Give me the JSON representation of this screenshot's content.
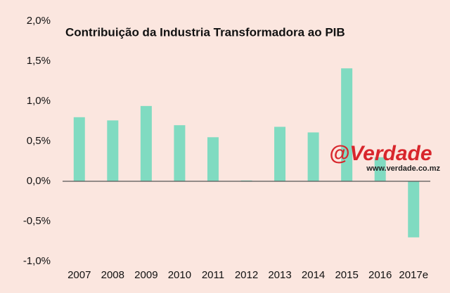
{
  "chart_data": {
    "type": "bar",
    "title": "Contribuição da Industria Transformadora ao PIB",
    "categories": [
      "2007",
      "2008",
      "2009",
      "2010",
      "2011",
      "2012",
      "2013",
      "2014",
      "2015",
      "2016",
      "2017e"
    ],
    "values": [
      0.8,
      0.76,
      0.94,
      0.7,
      0.55,
      0.01,
      0.68,
      0.61,
      1.41,
      0.3,
      -0.7
    ],
    "color": "#80dbc1",
    "ylim": [
      -1.0,
      2.0
    ],
    "yticks": [
      {
        "value": -1.0,
        "label": "-1,0%"
      },
      {
        "value": -0.5,
        "label": "-0,5%"
      },
      {
        "value": 0.0,
        "label": "0,0%"
      },
      {
        "value": 0.5,
        "label": "0,5%"
      },
      {
        "value": 1.0,
        "label": "1,0%"
      },
      {
        "value": 1.5,
        "label": "1,5%"
      },
      {
        "value": 2.0,
        "label": "2,0%"
      }
    ],
    "grid": false,
    "watermark": {
      "brand": "@Verdade",
      "url": "www.verdade.co.mz"
    }
  }
}
